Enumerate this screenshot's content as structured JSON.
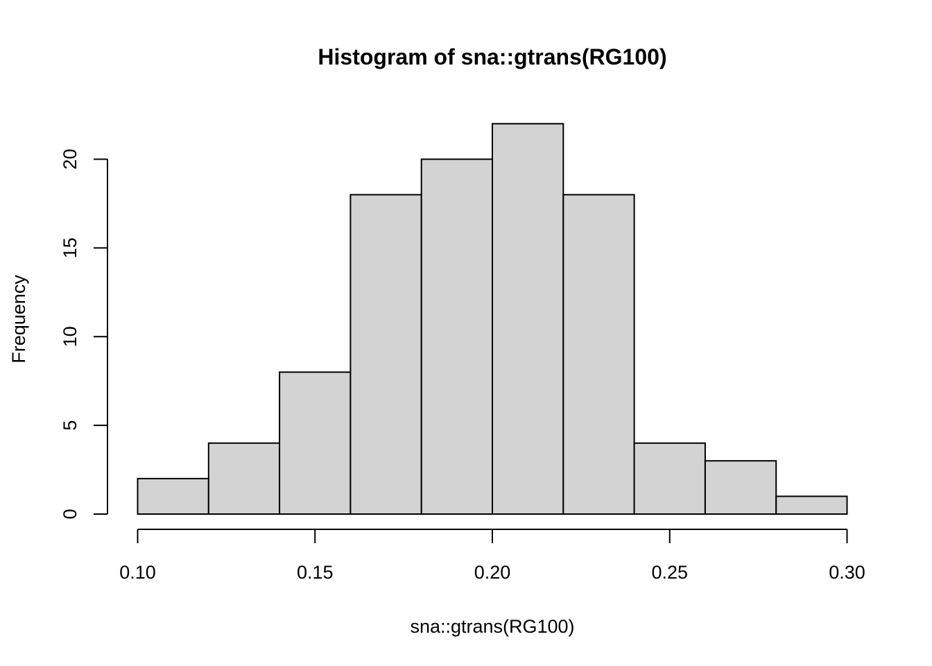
{
  "chart_data": {
    "type": "bar",
    "title": "Histogram of sna::gtrans(RG100)",
    "xlabel": "sna::gtrans(RG100)",
    "ylabel": "Frequency",
    "bin_edges": [
      0.1,
      0.12,
      0.14,
      0.16,
      0.18,
      0.2,
      0.22,
      0.24,
      0.26,
      0.28,
      0.3
    ],
    "values": [
      2,
      4,
      8,
      18,
      20,
      22,
      18,
      4,
      3,
      1
    ],
    "xlim": [
      0.1,
      0.3
    ],
    "ylim": [
      0,
      22
    ],
    "x_ticks": [
      0.1,
      0.15,
      0.2,
      0.25,
      0.3
    ],
    "x_tick_labels": [
      "0.10",
      "0.15",
      "0.20",
      "0.25",
      "0.30"
    ],
    "y_ticks": [
      0,
      5,
      10,
      15,
      20
    ],
    "y_tick_labels": [
      "0",
      "5",
      "10",
      "15",
      "20"
    ],
    "grid": false,
    "bar_color": "#d3d3d3",
    "edge_color": "#000000"
  }
}
